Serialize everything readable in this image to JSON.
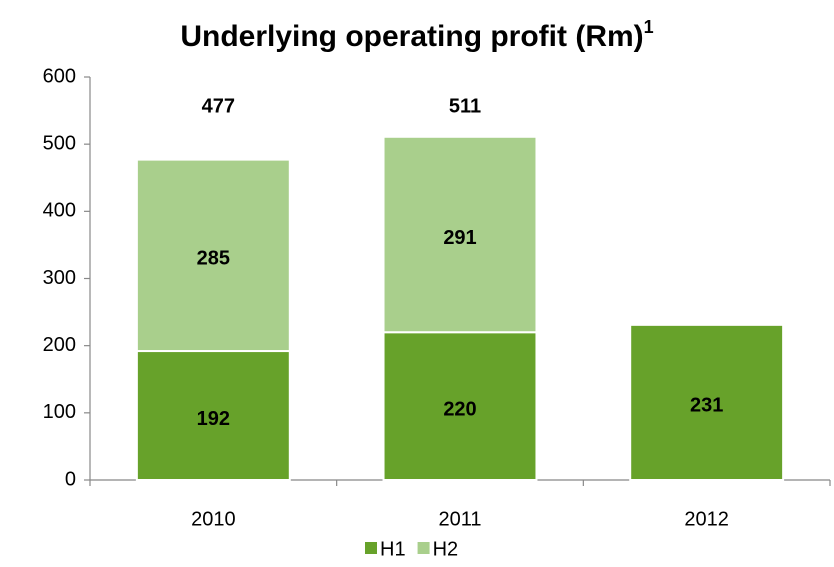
{
  "chart_data": {
    "type": "stacked_bar",
    "title": "Underlying operating profit (Rm)",
    "title_superscript": "1",
    "categories": [
      "2010",
      "2011",
      "2012"
    ],
    "series": [
      {
        "name": "H1",
        "color": "#67a22a",
        "values": [
          192,
          220,
          231
        ]
      },
      {
        "name": "H2",
        "color": "#a9cf8c",
        "values": [
          285,
          291,
          null
        ]
      }
    ],
    "totals": [
      477,
      511,
      null
    ],
    "ylim": [
      0,
      600
    ],
    "yticks": [
      0,
      100,
      200,
      300,
      400,
      500,
      600
    ],
    "grid": false,
    "legend": "bottom"
  }
}
